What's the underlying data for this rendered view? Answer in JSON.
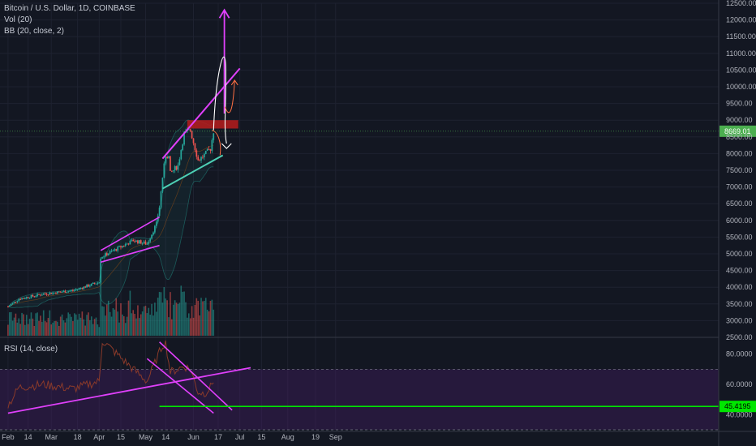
{
  "legend": {
    "title": "Bitcoin / U.S. Dollar, 1D, COINBASE",
    "volume": "Vol (20)",
    "bollinger": "BB (20, close, 2)",
    "rsi": "RSI (14, close)"
  },
  "colors": {
    "background": "#131722",
    "up": "#26a69a",
    "down": "#ef5350",
    "bb_fill": "#26a69a",
    "trendline": "#e040fb",
    "support_line": "#4dd0b5",
    "rsi_line": "#8a3a2a",
    "rsi_band": "#4a1e6e",
    "last_price": "#4caf50",
    "rsi_level": "#00e600",
    "resistance_box": "#b71c1c"
  },
  "chart_data": {
    "type": "candlestick",
    "title": "Bitcoin / U.S. Dollar, 1D, COINBASE",
    "x_ticks": [
      "Feb",
      "14",
      "Mar",
      "18",
      "Apr",
      "15",
      "May",
      "14",
      "Jun",
      "17",
      "Jul",
      "15",
      "Aug",
      "19",
      "Sep"
    ],
    "y_ticks": [
      "2500.00",
      "3000.00",
      "3500.00",
      "4000.00",
      "4500.00",
      "5000.00",
      "5500.00",
      "6000.00",
      "6500.00",
      "7000.00",
      "7500.00",
      "8000.00",
      "8500.00",
      "9000.00",
      "9500.00",
      "10000.00",
      "10500.00",
      "11000.00",
      "11500.00",
      "12000.00",
      "12500.00"
    ],
    "ylim": [
      2500,
      12500
    ],
    "last_price": "8669.01",
    "price_anchors": [
      {
        "date": "2019-02-01",
        "close": 3420
      },
      {
        "date": "2019-02-08",
        "close": 3650
      },
      {
        "date": "2019-02-24",
        "close": 3800
      },
      {
        "date": "2019-03-15",
        "close": 3900
      },
      {
        "date": "2019-04-01",
        "close": 4150
      },
      {
        "date": "2019-04-02",
        "close": 4900
      },
      {
        "date": "2019-04-23",
        "close": 5400
      },
      {
        "date": "2019-05-02",
        "close": 5300
      },
      {
        "date": "2019-05-08",
        "close": 5900
      },
      {
        "date": "2019-05-10",
        "close": 6400
      },
      {
        "date": "2019-05-12",
        "close": 7300
      },
      {
        "date": "2019-05-14",
        "close": 7950
      },
      {
        "date": "2019-05-16",
        "close": 7900
      },
      {
        "date": "2019-05-17",
        "close": 7400
      },
      {
        "date": "2019-05-22",
        "close": 7650
      },
      {
        "date": "2019-05-26",
        "close": 8600
      },
      {
        "date": "2019-05-30",
        "close": 8700
      },
      {
        "date": "2019-06-04",
        "close": 7800
      },
      {
        "date": "2019-06-08",
        "close": 7950
      },
      {
        "date": "2019-06-12",
        "close": 8150
      },
      {
        "date": "2019-06-14",
        "close": 8669
      }
    ],
    "rsi": {
      "title": "RSI (14, close)",
      "y_ticks": [
        "40.0000",
        "60.0000",
        "80.0000"
      ],
      "ylim": [
        30,
        90
      ],
      "overbought": 70,
      "oversold": 30,
      "marked_level": "45.4195",
      "anchors": [
        {
          "date": "2019-02-01",
          "value": 46
        },
        {
          "date": "2019-02-08",
          "value": 58
        },
        {
          "date": "2019-02-24",
          "value": 60
        },
        {
          "date": "2019-03-15",
          "value": 57
        },
        {
          "date": "2019-04-01",
          "value": 62
        },
        {
          "date": "2019-04-03",
          "value": 89
        },
        {
          "date": "2019-04-23",
          "value": 70
        },
        {
          "date": "2019-05-02",
          "value": 62
        },
        {
          "date": "2019-05-12",
          "value": 86
        },
        {
          "date": "2019-05-14",
          "value": 88
        },
        {
          "date": "2019-05-17",
          "value": 68
        },
        {
          "date": "2019-05-26",
          "value": 72
        },
        {
          "date": "2019-05-30",
          "value": 70
        },
        {
          "date": "2019-06-04",
          "value": 55
        },
        {
          "date": "2019-06-08",
          "value": 54
        },
        {
          "date": "2019-06-12",
          "value": 58
        },
        {
          "date": "2019-06-14",
          "value": 63
        }
      ]
    },
    "annotations": {
      "resistance_zone": {
        "from": "2019-05-28",
        "to": "2019-06-30",
        "low": 8750,
        "high": 9000
      },
      "rising_channel_upper": [
        {
          "date": "2019-05-12",
          "value": 7850
        },
        {
          "date": "2019-07-01",
          "value": 10550
        }
      ],
      "rising_channel_lower": [
        {
          "date": "2019-05-12",
          "value": 6950
        },
        {
          "date": "2019-06-20",
          "value": 7950
        }
      ],
      "april_channel_upper": [
        {
          "date": "2019-04-02",
          "value": 5100
        },
        {
          "date": "2019-05-10",
          "value": 6100
        }
      ],
      "april_channel_lower": [
        {
          "date": "2019-04-02",
          "value": 4750
        },
        {
          "date": "2019-05-10",
          "value": 5250
        }
      ],
      "projection_target": 12300,
      "rsi_uptrend": [
        {
          "date": "2019-02-01",
          "value": 41
        },
        {
          "date": "2019-07-08",
          "value": 71
        }
      ],
      "rsi_downtrend_upper": [
        {
          "date": "2019-05-10",
          "value": 88
        },
        {
          "date": "2019-06-26",
          "value": 43
        }
      ],
      "rsi_downtrend_lower": [
        {
          "date": "2019-05-02",
          "value": 77
        },
        {
          "date": "2019-06-14",
          "value": 41
        }
      ]
    }
  }
}
